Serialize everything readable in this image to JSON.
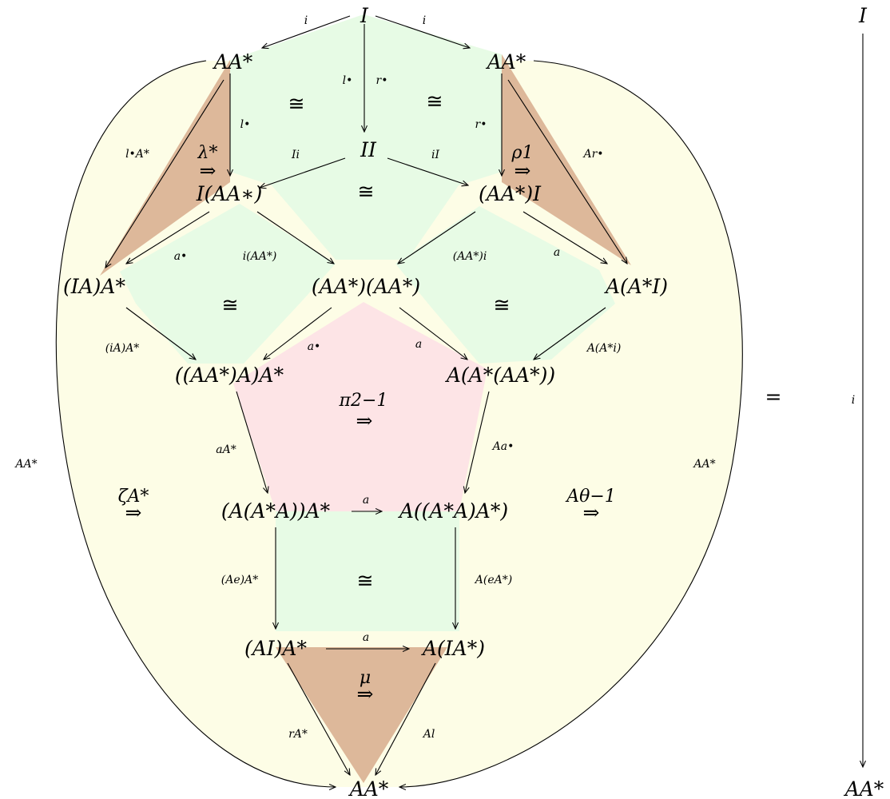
{
  "colors": {
    "outer_region": "#fdfde6",
    "green_region": "#e7fbe5",
    "pink_region": "#fde4e6",
    "brown_region": "#ddb89a"
  },
  "objects": {
    "I_top": "I",
    "AAstar_left": "AA*",
    "AAstar_right": "AA*",
    "II": "II",
    "I_AAstar": "I(AA∗)",
    "AAstar_I": "(AA*)I",
    "IA_Astar": "(IA)A*",
    "AAstar_AAstar": "(AA*)(AA*)",
    "A_AstarI": "A(A*I)",
    "AAstarA_Astar": "((AA*)A)A*",
    "A_AstarAAstar": "A(A*(AA*))",
    "A_AstarA_Astar": "(A(A*A))A*",
    "A_AstarA_Astar2": "A((A*A)A*)",
    "AI_Astar": "(AI)A*",
    "A_IAstar": "A(IA*)",
    "Astar_bottom": "AA*",
    "rhs_top": "I",
    "rhs_bottom": "AA*"
  },
  "edge_labels": {
    "i_left": "i",
    "i_right": "i",
    "l_bullet": "l•",
    "r_bullet": "r•",
    "l_bullet2": "l•",
    "r_bullet2": "r•",
    "Ii": "Ii",
    "iI": "iI",
    "lA": "l•A*",
    "Ar": "Ar•",
    "a_bullet": "a•",
    "i_AAstar": "i(AA*)",
    "AAstar_i": "(AA*)i",
    "a_right": "a",
    "iA_Astar": "(iA)A*",
    "a_bullet2": "a•",
    "a_mid": "a",
    "A_Astar_i": "A(A*i)",
    "aA": "aA*",
    "Aa": "Aa•",
    "a_horiz": "a",
    "Ae_A": "(Ae)A*",
    "A_eA": "A(eA*)",
    "a_horiz2": "a",
    "rA": "rA*",
    "Al": "Al",
    "AA_left": "AA*",
    "AA_right": "AA*",
    "rhs_i": "i"
  },
  "isos": [
    "≅",
    "≅",
    "≅",
    "≅",
    "≅",
    "≅"
  ],
  "two_cells": {
    "lambda": "λ*",
    "rho": "ρ1",
    "pi": "π2−1",
    "zeta": "ζA*",
    "theta": "Aθ−1",
    "mu": "μ"
  },
  "equals": "="
}
